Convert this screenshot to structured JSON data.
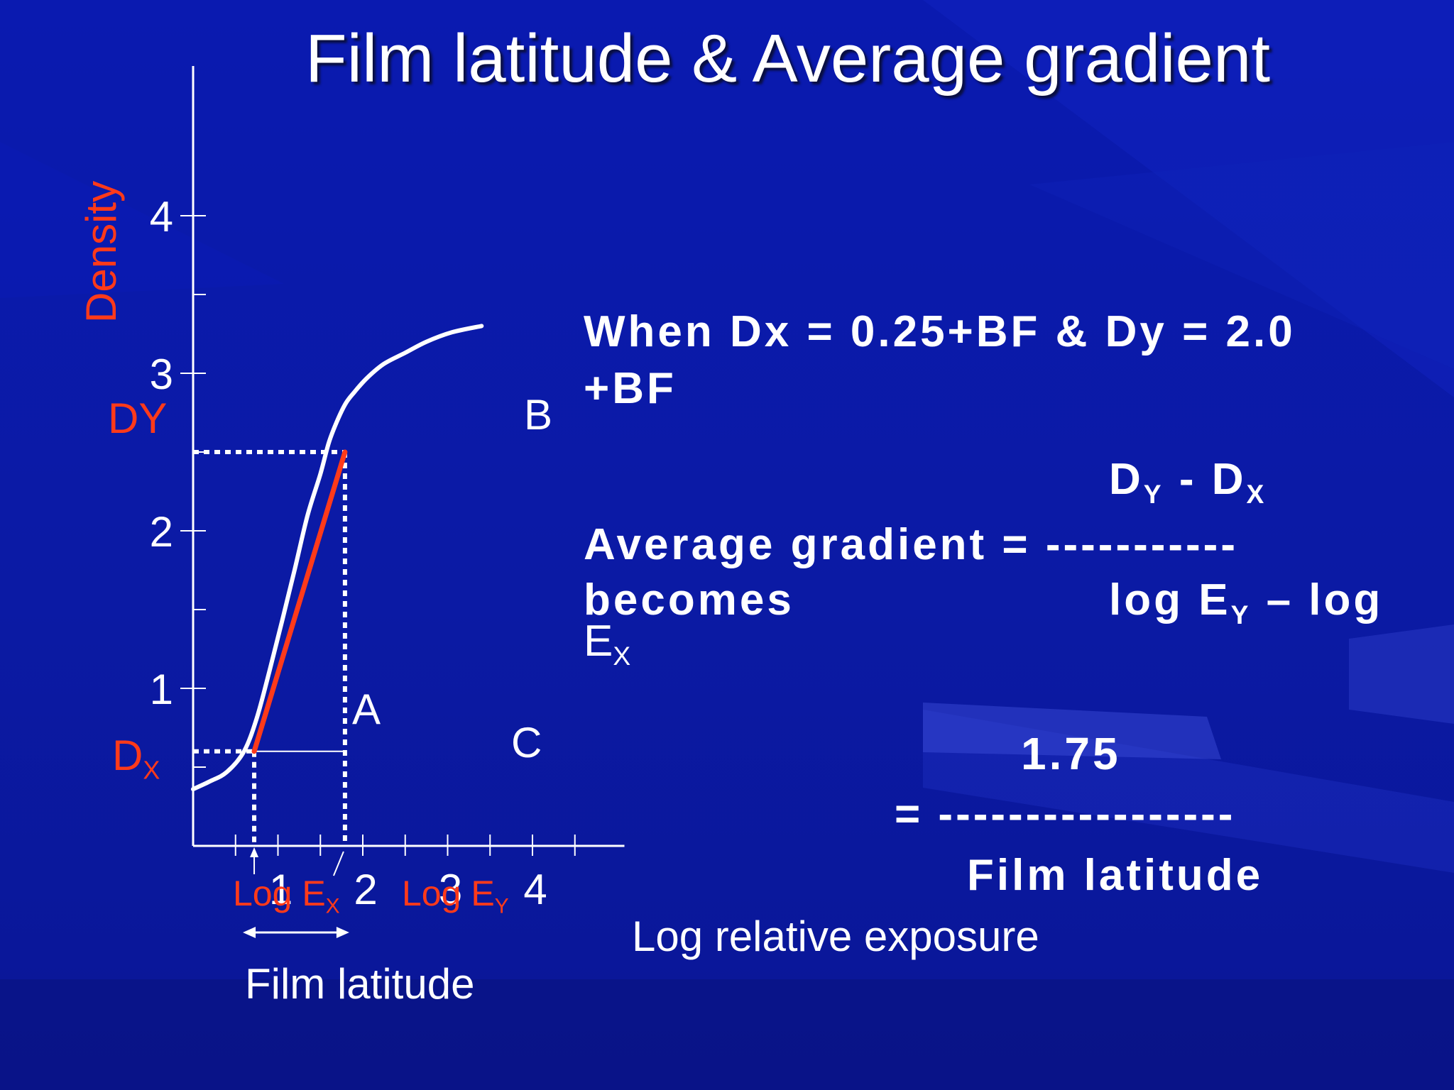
{
  "title": "Film latitude & Average gradient",
  "chart_data": {
    "type": "line",
    "xlabel": "Log relative exposure",
    "ylabel": "Density",
    "xlim": [
      0,
      5
    ],
    "ylim": [
      0,
      4.5
    ],
    "x_ticks": [
      1,
      2,
      3,
      4
    ],
    "y_ticks": [
      1,
      2,
      3,
      4
    ],
    "series": [
      {
        "x": [
          0.0,
          0.2,
          0.4,
          0.6,
          0.75,
          0.9,
          1.05,
          1.2,
          1.35,
          1.5,
          1.6,
          1.7,
          1.8,
          1.9,
          2.05,
          2.25,
          2.5,
          2.75,
          3.05,
          3.4
        ],
        "y": [
          0.36,
          0.41,
          0.47,
          0.6,
          0.81,
          1.11,
          1.43,
          1.76,
          2.1,
          2.36,
          2.56,
          2.7,
          2.81,
          2.88,
          2.97,
          3.06,
          3.13,
          3.2,
          3.26,
          3.3
        ]
      }
    ],
    "gradient_line": {
      "x": [
        0.72,
        1.79
      ],
      "y": [
        0.6,
        2.5
      ]
    },
    "point_labels": [
      "A",
      "B",
      "C"
    ],
    "dx_label": "D",
    "dx_sub": "X",
    "dy_label": "DY",
    "logex_label": "Log E",
    "logex_sub": "X",
    "logey_label": "Log E",
    "logey_sub": "Y",
    "latitude_label": "Film latitude"
  },
  "annotations": {
    "line1": "When Dx = 0.25+BF & Dy = 2.0",
    "line2": "+BF",
    "num_d": "D",
    "num_sub_y": "Y",
    "num_mid": " - D",
    "num_sub_x": "X",
    "avg_label": "Average gradient = -----------",
    "becomes": "becomes",
    "den_log": "log E",
    "den_sub_y": "Y",
    "den_rest": " – log",
    "den_e": "E",
    "den_sub_x": "X",
    "value": "1.75",
    "eq_line": "= -----------------",
    "latitude_text": "Film latitude"
  },
  "colors": {
    "background": "#0a1ab0",
    "curve": "#ffffff",
    "gradient_line": "#ff3a1a",
    "red_text": "#ff3a1a"
  }
}
